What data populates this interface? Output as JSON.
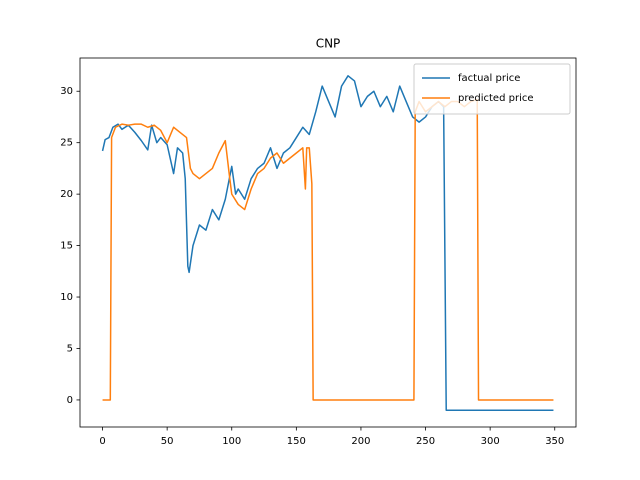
{
  "chart_data": {
    "type": "line",
    "title": "CNP",
    "xlim": [
      -17.45,
      366.45
    ],
    "ylim": [
      -2.63,
      33.23
    ],
    "xticks": [
      0,
      50,
      100,
      150,
      200,
      250,
      300,
      350
    ],
    "yticks": [
      0,
      5,
      10,
      15,
      20,
      25,
      30
    ],
    "grid": false,
    "legend": "upper right",
    "series": [
      {
        "name": "factual price",
        "color": "#1f77b4",
        "x": [
          0,
          2,
          5,
          8,
          12,
          15,
          20,
          25,
          30,
          35,
          38,
          42,
          45,
          50,
          55,
          58,
          62,
          64,
          66,
          67,
          70,
          75,
          80,
          85,
          90,
          95,
          100,
          103,
          105,
          110,
          115,
          120,
          125,
          130,
          135,
          140,
          145,
          150,
          155,
          160,
          165,
          170,
          175,
          180,
          185,
          190,
          195,
          200,
          205,
          210,
          215,
          220,
          225,
          230,
          235,
          240,
          245,
          250,
          255,
          260,
          264,
          266,
          349
        ],
        "values": [
          24.2,
          25.3,
          25.5,
          26.5,
          26.8,
          26.3,
          26.7,
          26.0,
          25.2,
          24.3,
          26.7,
          25.0,
          25.5,
          24.8,
          22.0,
          24.5,
          24.0,
          21.5,
          13.0,
          12.4,
          15.0,
          17.0,
          16.5,
          18.5,
          17.5,
          19.5,
          22.7,
          20.0,
          20.5,
          19.5,
          21.5,
          22.5,
          23.0,
          24.5,
          22.5,
          24.0,
          24.5,
          25.5,
          26.5,
          25.8,
          28.0,
          30.5,
          29.0,
          27.5,
          30.5,
          31.5,
          31.0,
          28.5,
          29.5,
          30.0,
          28.5,
          29.5,
          28.0,
          30.5,
          29.0,
          27.5,
          27.0,
          27.5,
          28.5,
          29.0,
          28.5,
          -1,
          -1
        ]
      },
      {
        "name": "predicted price",
        "color": "#ff7f0e",
        "x": [
          0,
          5,
          6,
          7,
          10,
          15,
          20,
          25,
          30,
          35,
          40,
          45,
          50,
          55,
          60,
          65,
          68,
          70,
          75,
          80,
          85,
          90,
          95,
          98,
          100,
          105,
          110,
          115,
          120,
          125,
          130,
          135,
          140,
          145,
          150,
          155,
          157,
          158,
          160,
          162,
          163,
          241,
          242,
          245,
          250,
          255,
          260,
          265,
          270,
          275,
          280,
          285,
          290,
          291,
          349
        ],
        "values": [
          0,
          0,
          0,
          25.5,
          26.5,
          26.8,
          26.7,
          26.8,
          26.8,
          26.5,
          26.7,
          26.2,
          25.0,
          26.5,
          26.0,
          25.5,
          22.5,
          22.0,
          21.5,
          22.0,
          22.5,
          24.0,
          25.2,
          22.0,
          20.0,
          19.0,
          18.5,
          20.5,
          22.0,
          22.5,
          23.5,
          24.0,
          23.0,
          23.5,
          24.0,
          24.5,
          20.5,
          24.5,
          24.5,
          21.0,
          0,
          0,
          28.0,
          29.0,
          28.0,
          28.5,
          29.0,
          28.5,
          29.0,
          29.0,
          28.5,
          29.0,
          29.2,
          0,
          0
        ]
      }
    ]
  }
}
